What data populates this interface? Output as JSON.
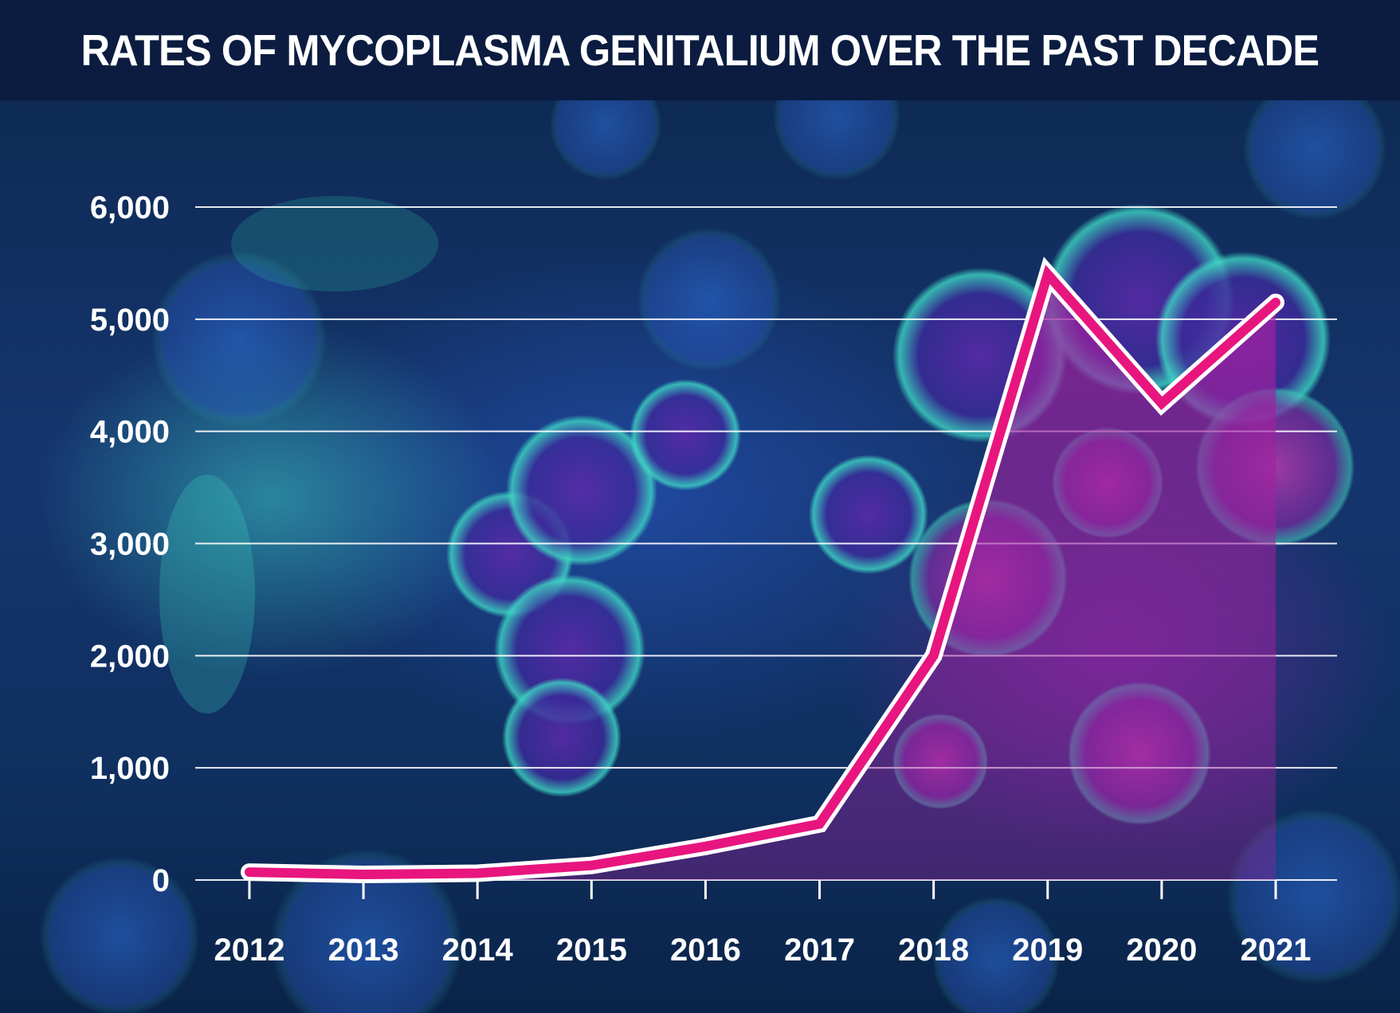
{
  "chart_data": {
    "type": "line",
    "title": "RATES OF MYCOPLASMA GENITALIUM OVER THE PAST DECADE",
    "categories": [
      "2012",
      "2013",
      "2014",
      "2015",
      "2016",
      "2017",
      "2018",
      "2019",
      "2020",
      "2021"
    ],
    "series": [
      {
        "values": [
          70,
          50,
          60,
          130,
          300,
          500,
          2000,
          5400,
          4250,
          5150
        ]
      }
    ],
    "yticks": [
      0,
      1000,
      2000,
      3000,
      4000,
      5000,
      6000
    ],
    "ytick_labels": [
      "0",
      "1,000",
      "2,000",
      "3,000",
      "4,000",
      "5,000",
      "6,000"
    ],
    "ylim": [
      0,
      6000
    ],
    "grid": true,
    "area_fill": true,
    "colors": {
      "line": "#e8157f",
      "line_outline": "#ffffff",
      "area": "#a020a0",
      "gridline": "#ffffff"
    }
  }
}
